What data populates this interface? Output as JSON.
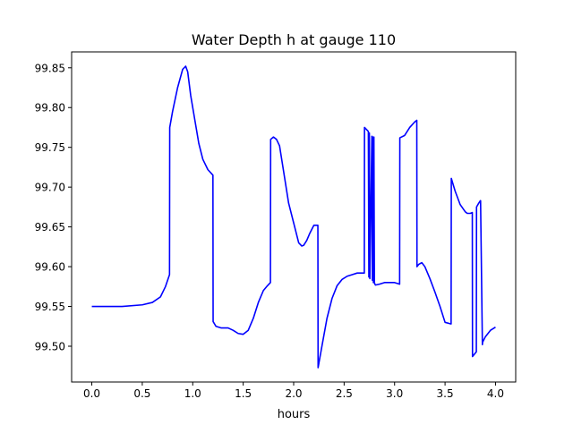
{
  "chart_data": {
    "type": "line",
    "title": "Water Depth h at gauge 110",
    "xlabel": "hours",
    "ylabel": "",
    "xlim": [
      -0.2,
      4.2
    ],
    "ylim": [
      99.455,
      99.87
    ],
    "xticks": [
      "0.0",
      "0.5",
      "1.0",
      "1.5",
      "2.0",
      "2.5",
      "3.0",
      "3.5",
      "4.0"
    ],
    "yticks": [
      "99.50",
      "99.55",
      "99.60",
      "99.65",
      "99.70",
      "99.75",
      "99.80",
      "99.85"
    ],
    "grid": false,
    "series": [
      {
        "color": "#0000ff",
        "x": [
          0.0,
          0.3,
          0.5,
          0.6,
          0.68,
          0.73,
          0.77,
          0.772,
          0.8,
          0.85,
          0.9,
          0.93,
          0.95,
          0.98,
          1.02,
          1.06,
          1.1,
          1.15,
          1.2,
          1.202,
          1.23,
          1.28,
          1.35,
          1.4,
          1.45,
          1.5,
          1.55,
          1.6,
          1.65,
          1.7,
          1.74,
          1.77,
          1.772,
          1.8,
          1.83,
          1.86,
          1.9,
          1.95,
          2.0,
          2.05,
          2.08,
          2.1,
          2.13,
          2.16,
          2.2,
          2.24,
          2.242,
          2.28,
          2.33,
          2.38,
          2.43,
          2.48,
          2.53,
          2.58,
          2.63,
          2.68,
          2.7,
          2.702,
          2.74,
          2.745,
          2.75,
          2.755,
          2.775,
          2.78,
          2.785,
          2.79,
          2.795,
          2.8,
          2.805,
          2.81,
          2.815,
          2.85,
          2.9,
          2.95,
          3.0,
          3.05,
          3.052,
          3.1,
          3.15,
          3.2,
          3.22,
          3.222,
          3.24,
          3.27,
          3.3,
          3.35,
          3.4,
          3.45,
          3.5,
          3.56,
          3.562,
          3.6,
          3.65,
          3.7,
          3.72,
          3.75,
          3.77,
          3.772,
          3.81,
          3.812,
          3.83,
          3.85,
          3.852,
          3.87,
          3.872,
          3.9,
          3.95,
          4.0
        ],
        "y": [
          99.55,
          99.55,
          99.552,
          99.555,
          99.562,
          99.575,
          99.59,
          99.775,
          99.795,
          99.825,
          99.848,
          99.852,
          99.845,
          99.815,
          99.785,
          99.755,
          99.735,
          99.722,
          99.715,
          99.531,
          99.525,
          99.523,
          99.523,
          99.52,
          99.516,
          99.515,
          99.52,
          99.535,
          99.555,
          99.57,
          99.576,
          99.58,
          99.76,
          99.763,
          99.76,
          99.752,
          99.72,
          99.68,
          99.655,
          99.63,
          99.626,
          99.627,
          99.633,
          99.642,
          99.652,
          99.652,
          99.473,
          99.5,
          99.535,
          99.56,
          99.576,
          99.584,
          99.588,
          99.59,
          99.592,
          99.592,
          99.592,
          99.775,
          99.77,
          99.587,
          99.768,
          99.585,
          99.764,
          99.583,
          99.763,
          99.58,
          99.763,
          99.58,
          99.578,
          99.577,
          99.577,
          99.578,
          99.58,
          99.58,
          99.58,
          99.578,
          99.762,
          99.765,
          99.775,
          99.782,
          99.784,
          99.6,
          99.603,
          99.605,
          99.6,
          99.585,
          99.568,
          99.55,
          99.53,
          99.528,
          99.711,
          99.695,
          99.678,
          99.669,
          99.667,
          99.667,
          99.668,
          99.487,
          99.493,
          99.675,
          99.679,
          99.683,
          99.683,
          99.502,
          99.505,
          99.512,
          99.52,
          99.524
        ]
      }
    ]
  }
}
